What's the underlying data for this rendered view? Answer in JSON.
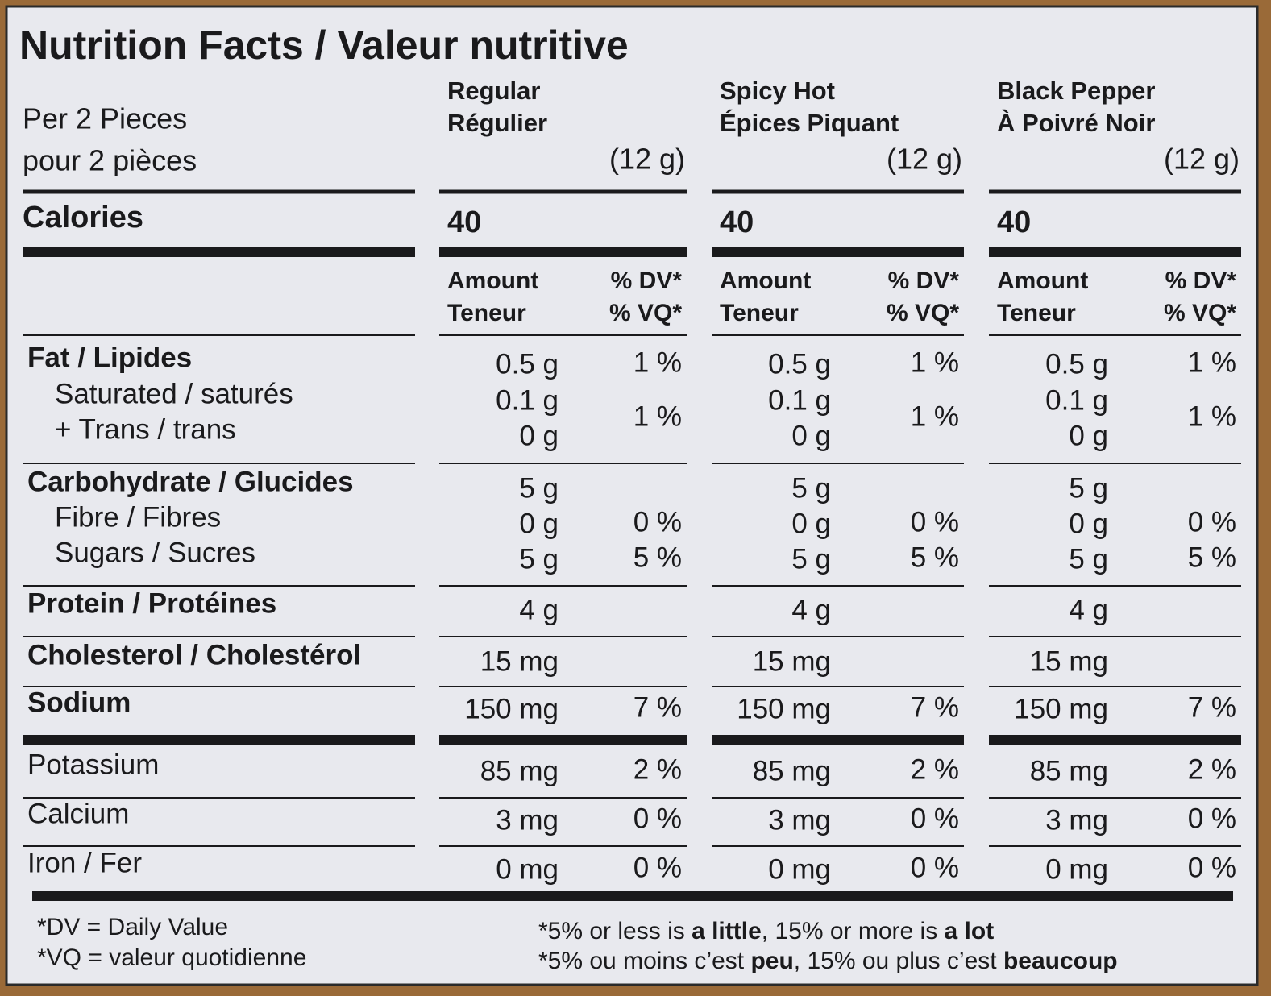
{
  "title": "Nutrition Facts / Valeur nutritive",
  "serving": [
    "Per 2 Pieces",
    "pour 2 pièces"
  ],
  "calories_label": "Calories",
  "amount_header": [
    "Amount",
    "Teneur"
  ],
  "dv_header": [
    "% DV*",
    "% VQ*"
  ],
  "columns": [
    {
      "name": [
        "Regular",
        "Régulier"
      ],
      "size": "(12 g)",
      "calories": "40"
    },
    {
      "name": [
        "Spicy Hot",
        "Épices Piquant"
      ],
      "size": "(12 g)",
      "calories": "40"
    },
    {
      "name": [
        "Black Pepper",
        "À Poivré Noir"
      ],
      "size": "(12 g)",
      "calories": "40"
    }
  ],
  "rows": [
    {
      "label": "Fat / Lipides",
      "bold": true,
      "indent": false,
      "amounts": [
        "0.5 g",
        "0.5 g",
        "0.5 g"
      ],
      "dvs": [
        "1 %",
        "1 %",
        "1 %"
      ]
    },
    {
      "label": "Saturated / saturés",
      "bold": false,
      "indent": true,
      "amounts": [
        "0.1 g",
        "0.1 g",
        "0.1 g"
      ],
      "dvs": [
        "1 %",
        "1 %",
        "1 %"
      ]
    },
    {
      "label": "+ Trans / trans",
      "bold": false,
      "indent": true,
      "amounts": [
        "0 g",
        "0 g",
        "0 g"
      ],
      "dvs": [
        null,
        null,
        null
      ]
    },
    {
      "label": "Carbohydrate / Glucides",
      "bold": true,
      "indent": false,
      "amounts": [
        "5 g",
        "5 g",
        "5 g"
      ],
      "dvs": [
        null,
        null,
        null
      ]
    },
    {
      "label": "Fibre / Fibres",
      "bold": false,
      "indent": true,
      "amounts": [
        "0 g",
        "0 g",
        "0 g"
      ],
      "dvs": [
        "0 %",
        "0 %",
        "0 %"
      ]
    },
    {
      "label": "Sugars / Sucres",
      "bold": false,
      "indent": true,
      "amounts": [
        "5 g",
        "5 g",
        "5 g"
      ],
      "dvs": [
        "5 %",
        "5 %",
        "5 %"
      ]
    },
    {
      "label": "Protein / Protéines",
      "bold": true,
      "indent": false,
      "amounts": [
        "4 g",
        "4 g",
        "4 g"
      ],
      "dvs": [
        null,
        null,
        null
      ]
    },
    {
      "label": "Cholesterol / Cholestérol",
      "bold": true,
      "indent": false,
      "amounts": [
        "15 mg",
        "15 mg",
        "15 mg"
      ],
      "dvs": [
        null,
        null,
        null
      ]
    },
    {
      "label": "Sodium",
      "bold": true,
      "indent": false,
      "amounts": [
        "150 mg",
        "150 mg",
        "150 mg"
      ],
      "dvs": [
        "7 %",
        "7 %",
        "7 %"
      ]
    },
    {
      "label": "Potassium",
      "bold": false,
      "indent": false,
      "amounts": [
        "85 mg",
        "85 mg",
        "85 mg"
      ],
      "dvs": [
        "2 %",
        "2 %",
        "2 %"
      ]
    },
    {
      "label": "Calcium",
      "bold": false,
      "indent": false,
      "amounts": [
        "3 mg",
        "3 mg",
        "3 mg"
      ],
      "dvs": [
        "0 %",
        "0 %",
        "0 %"
      ]
    },
    {
      "label": "Iron / Fer",
      "bold": false,
      "indent": false,
      "amounts": [
        "0 mg",
        "0 mg",
        "0 mg"
      ],
      "dvs": [
        "0 %",
        "0 %",
        "0 %"
      ]
    }
  ],
  "footnotes": [
    "*DV = Daily Value",
    "*VQ = valeur quotidienne"
  ],
  "guidance": [
    [
      {
        "text": "*5% or less is ",
        "bold": false
      },
      {
        "text": "a little",
        "bold": true
      },
      {
        "text": ", 15% or more is ",
        "bold": false
      },
      {
        "text": "a lot",
        "bold": true
      }
    ],
    [
      {
        "text": "*5% ou moins c’est ",
        "bold": false
      },
      {
        "text": "peu",
        "bold": true
      },
      {
        "text": ", 15% ou plus c’est ",
        "bold": false
      },
      {
        "text": "beaucoup",
        "bold": true
      }
    ]
  ]
}
